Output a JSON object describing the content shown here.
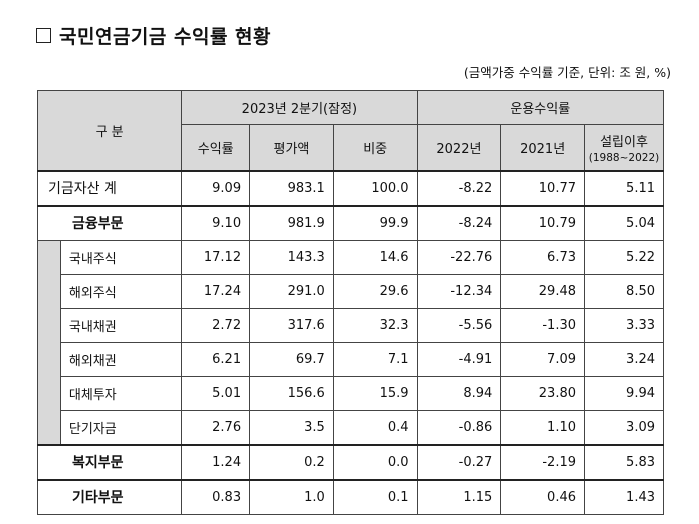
{
  "title": "국민연금기금 수익률 현황",
  "unit_note": "(금액가중 수익률 기준, 단위: 조 원, %)",
  "header": {
    "category": "구 분",
    "period_group": "2023년 2분기(잠정)",
    "returns_group": "운용수익률",
    "cols": {
      "return_rate": "수익률",
      "valuation": "평가액",
      "share": "비중",
      "y2022": "2022년",
      "y2021": "2021년",
      "since": "설립이후",
      "since_range": "(1988~2022)"
    }
  },
  "rows": [
    {
      "label": "기금자산 계",
      "v": [
        "9.09",
        "983.1",
        "100.0",
        "-8.22",
        "10.77",
        "5.11"
      ]
    },
    {
      "label": "금융부문",
      "v": [
        "9.10",
        "981.9",
        "99.9",
        "-8.24",
        "10.79",
        "5.04"
      ]
    },
    {
      "label": "국내주식",
      "v": [
        "17.12",
        "143.3",
        "14.6",
        "-22.76",
        "6.73",
        "5.22"
      ]
    },
    {
      "label": "해외주식",
      "v": [
        "17.24",
        "291.0",
        "29.6",
        "-12.34",
        "29.48",
        "8.50"
      ]
    },
    {
      "label": "국내채권",
      "v": [
        "2.72",
        "317.6",
        "32.3",
        "-5.56",
        "-1.30",
        "3.33"
      ]
    },
    {
      "label": "해외채권",
      "v": [
        "6.21",
        "69.7",
        "7.1",
        "-4.91",
        "7.09",
        "3.24"
      ]
    },
    {
      "label": "대체투자",
      "v": [
        "5.01",
        "156.6",
        "15.9",
        "8.94",
        "23.80",
        "9.94"
      ]
    },
    {
      "label": "단기자금",
      "v": [
        "2.76",
        "3.5",
        "0.4",
        "-0.86",
        "1.10",
        "3.09"
      ]
    },
    {
      "label": "복지부문",
      "v": [
        "1.24",
        "0.2",
        "0.0",
        "-0.27",
        "-2.19",
        "5.83"
      ]
    },
    {
      "label": "기타부문",
      "v": [
        "0.83",
        "1.0",
        "0.1",
        "1.15",
        "0.46",
        "1.43"
      ]
    }
  ]
}
